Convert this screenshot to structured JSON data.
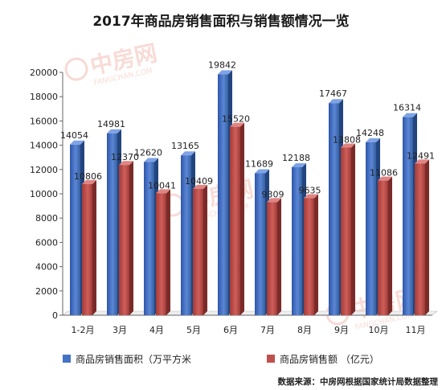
{
  "chart_data": {
    "type": "bar",
    "title": "2017年商品房销售面积与销售额情况一览",
    "categories": [
      "1-2月",
      "3月",
      "4月",
      "5月",
      "6月",
      "7月",
      "8月",
      "9月",
      "10月",
      "11月"
    ],
    "series": [
      {
        "name": "商品房销售面积（万平方米",
        "values": [
          14054,
          14981,
          12620,
          13165,
          19842,
          11689,
          12188,
          17467,
          14248,
          16314
        ]
      },
      {
        "name": "商品房销售额 （亿元）",
        "values": [
          10806,
          12370,
          10041,
          10409,
          15520,
          9309,
          9635,
          13808,
          11086,
          12491
        ]
      }
    ],
    "yticks": [
      "0",
      "2000",
      "4000",
      "6000",
      "8000",
      "10000",
      "12000",
      "14000",
      "16000",
      "18000",
      "20000"
    ],
    "ylim": [
      0,
      20000
    ],
    "grid": false,
    "legend_position": "bottom",
    "colors": {
      "series1": "#4472c4",
      "series2": "#c0504d"
    },
    "source": "数据来源：中房网根据国家统计局数据整理",
    "watermark": {
      "brand": "中房网",
      "domain": "FANGCHAN.COM"
    }
  }
}
